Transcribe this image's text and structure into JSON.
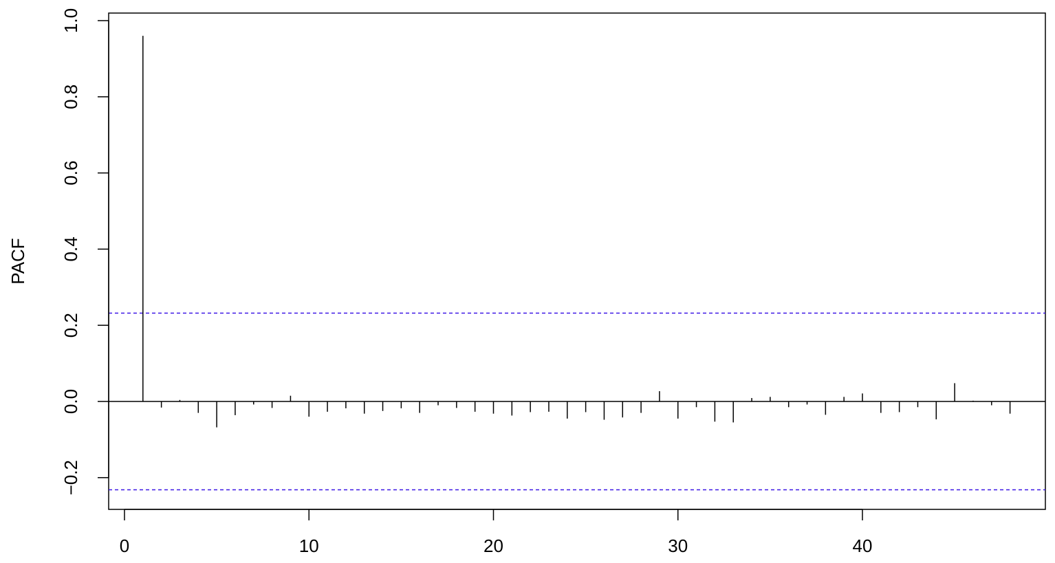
{
  "chart_data": {
    "type": "bar",
    "title": "",
    "xlabel": "",
    "ylabel": "PACF",
    "xlim": [
      -0.85,
      48.85
    ],
    "ylim": [
      -0.285,
      1.0
    ],
    "x_ticks": [
      0,
      10,
      20,
      30,
      40
    ],
    "x_tick_labels": [
      "0",
      "10",
      "20",
      "30",
      "40"
    ],
    "y_ticks": [
      -0.2,
      0.0,
      0.2,
      0.4,
      0.6,
      0.8,
      1.0
    ],
    "y_tick_labels": [
      "−0.2",
      "0.0",
      "0.2",
      "0.4",
      "0.6",
      "0.8",
      "1.0"
    ],
    "grid": false,
    "zero_line": 0.0,
    "confidence_bounds": {
      "upper": 0.232,
      "lower": -0.232,
      "color": "#3b16e6",
      "style": "dashed"
    },
    "bar_color": "#000000",
    "lags": [
      1,
      2,
      3,
      4,
      5,
      6,
      7,
      8,
      9,
      10,
      11,
      12,
      13,
      14,
      15,
      16,
      17,
      18,
      19,
      20,
      21,
      22,
      23,
      24,
      25,
      26,
      27,
      28,
      29,
      30,
      31,
      32,
      33,
      34,
      35,
      36,
      37,
      38,
      39,
      40,
      41,
      42,
      43,
      44,
      45,
      46,
      47,
      48
    ],
    "values": [
      0.96,
      -0.016,
      0.004,
      -0.03,
      -0.068,
      -0.036,
      -0.008,
      -0.017,
      0.015,
      -0.04,
      -0.027,
      -0.018,
      -0.032,
      -0.025,
      -0.018,
      -0.03,
      -0.01,
      -0.017,
      -0.027,
      -0.032,
      -0.037,
      -0.028,
      -0.027,
      -0.045,
      -0.028,
      -0.048,
      -0.042,
      -0.03,
      0.027,
      -0.045,
      -0.015,
      -0.053,
      -0.055,
      0.009,
      0.012,
      -0.015,
      -0.008,
      -0.035,
      0.012,
      0.021,
      -0.03,
      -0.028,
      -0.015,
      -0.047,
      0.048,
      0.002,
      -0.01,
      -0.032
    ]
  }
}
